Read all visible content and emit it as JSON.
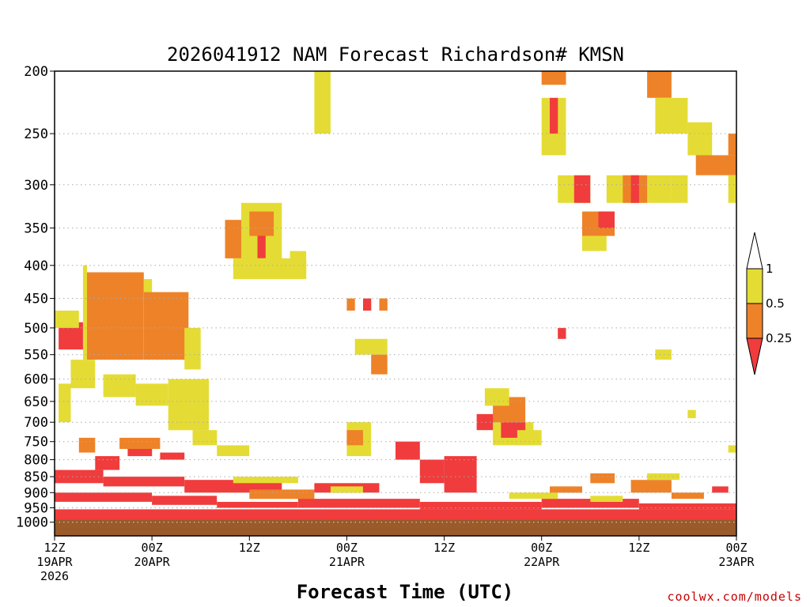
{
  "chart_data": {
    "type": "heatmap",
    "title": "2026041912 NAM Forecast Richardson# KMSN",
    "xlabel": "Forecast Time (UTC)",
    "ylabel": "",
    "credit": "coolwx.com/models",
    "hours_range": [
      0,
      84
    ],
    "pressure_range_hPa": [
      200,
      1050
    ],
    "pressure_ticks": [
      200,
      250,
      300,
      350,
      400,
      450,
      500,
      550,
      600,
      650,
      700,
      750,
      800,
      850,
      900,
      950,
      1000
    ],
    "pressure_tick_labels": [
      "200",
      "250",
      "300",
      "350",
      "400",
      "450",
      "500",
      "550",
      "600",
      "650",
      "700",
      "750",
      "800",
      "850",
      "900",
      "950",
      "1000"
    ],
    "time_ticks": [
      {
        "hour": 0,
        "line1": "12Z",
        "line2": "19APR",
        "line3": "2026"
      },
      {
        "hour": 12,
        "line1": "00Z",
        "line2": "20APR",
        "line3": ""
      },
      {
        "hour": 24,
        "line1": "12Z",
        "line2": "",
        "line3": ""
      },
      {
        "hour": 36,
        "line1": "00Z",
        "line2": "21APR",
        "line3": ""
      },
      {
        "hour": 48,
        "line1": "12Z",
        "line2": "",
        "line3": ""
      },
      {
        "hour": 60,
        "line1": "00Z",
        "line2": "22APR",
        "line3": ""
      },
      {
        "hour": 72,
        "line1": "12Z",
        "line2": "",
        "line3": ""
      },
      {
        "hour": 84,
        "line1": "00Z",
        "line2": "23APR",
        "line3": ""
      }
    ],
    "colors": {
      "low": "#f03c3c",
      "mid": "#ee8228",
      "high": "#e4dc34",
      "ground": "#9a5a2a",
      "grid": "#aaaaaa"
    },
    "legend": {
      "labels": [
        "1",
        "0.5",
        "0.25"
      ]
    },
    "ground_level_hPa": 990,
    "blocks": [
      {
        "h": [
          4,
          11
        ],
        "p": [
          410,
          560
        ],
        "cls": "mid"
      },
      {
        "h": [
          3.5,
          4
        ],
        "p": [
          400,
          560
        ],
        "cls": "high"
      },
      {
        "h": [
          11,
          12
        ],
        "p": [
          420,
          520
        ],
        "cls": "high"
      },
      {
        "h": [
          11,
          16.5
        ],
        "p": [
          440,
          560
        ],
        "cls": "mid"
      },
      {
        "h": [
          16,
          18
        ],
        "p": [
          500,
          580
        ],
        "cls": "high"
      },
      {
        "h": [
          0.5,
          3.5
        ],
        "p": [
          490,
          540
        ],
        "cls": "low"
      },
      {
        "h": [
          0,
          3
        ],
        "p": [
          470,
          500
        ],
        "cls": "high"
      },
      {
        "h": [
          0.5,
          2
        ],
        "p": [
          610,
          700
        ],
        "cls": "high"
      },
      {
        "h": [
          2,
          5
        ],
        "p": [
          560,
          620
        ],
        "cls": "high"
      },
      {
        "h": [
          6,
          10
        ],
        "p": [
          590,
          640
        ],
        "cls": "high"
      },
      {
        "h": [
          10,
          14
        ],
        "p": [
          610,
          660
        ],
        "cls": "high"
      },
      {
        "h": [
          14,
          19
        ],
        "p": [
          600,
          720
        ],
        "cls": "high"
      },
      {
        "h": [
          17,
          20
        ],
        "p": [
          720,
          760
        ],
        "cls": "high"
      },
      {
        "h": [
          3,
          5
        ],
        "p": [
          740,
          780
        ],
        "cls": "mid"
      },
      {
        "h": [
          8,
          13
        ],
        "p": [
          740,
          770
        ],
        "cls": "mid"
      },
      {
        "h": [
          9,
          12
        ],
        "p": [
          770,
          790
        ],
        "cls": "low"
      },
      {
        "h": [
          5,
          8
        ],
        "p": [
          790,
          830
        ],
        "cls": "low"
      },
      {
        "h": [
          13,
          16
        ],
        "p": [
          780,
          800
        ],
        "cls": "low"
      },
      {
        "h": [
          20,
          24
        ],
        "p": [
          760,
          790
        ],
        "cls": "high"
      },
      {
        "h": [
          21,
          23
        ],
        "p": [
          340,
          390
        ],
        "cls": "mid"
      },
      {
        "h": [
          23,
          28
        ],
        "p": [
          320,
          400
        ],
        "cls": "high"
      },
      {
        "h": [
          24,
          27
        ],
        "p": [
          330,
          360
        ],
        "cls": "mid"
      },
      {
        "h": [
          25,
          26
        ],
        "p": [
          360,
          390
        ],
        "cls": "low"
      },
      {
        "h": [
          22,
          31
        ],
        "p": [
          390,
          420
        ],
        "cls": "high"
      },
      {
        "h": [
          29,
          31
        ],
        "p": [
          380,
          410
        ],
        "cls": "high"
      },
      {
        "h": [
          32,
          34
        ],
        "p": [
          200,
          250
        ],
        "cls": "high"
      },
      {
        "h": [
          36,
          37
        ],
        "p": [
          450,
          470
        ],
        "cls": "mid"
      },
      {
        "h": [
          38,
          39
        ],
        "p": [
          450,
          470
        ],
        "cls": "low"
      },
      {
        "h": [
          40,
          41
        ],
        "p": [
          450,
          470
        ],
        "cls": "mid"
      },
      {
        "h": [
          37,
          41
        ],
        "p": [
          520,
          550
        ],
        "cls": "high"
      },
      {
        "h": [
          39,
          41
        ],
        "p": [
          550,
          590
        ],
        "cls": "mid"
      },
      {
        "h": [
          36,
          39
        ],
        "p": [
          700,
          790
        ],
        "cls": "high"
      },
      {
        "h": [
          36,
          38
        ],
        "p": [
          720,
          760
        ],
        "cls": "mid"
      },
      {
        "h": [
          42,
          45
        ],
        "p": [
          750,
          800
        ],
        "cls": "low"
      },
      {
        "h": [
          45,
          48
        ],
        "p": [
          800,
          870
        ],
        "cls": "low"
      },
      {
        "h": [
          48,
          52
        ],
        "p": [
          790,
          900
        ],
        "cls": "low"
      },
      {
        "h": [
          52,
          55
        ],
        "p": [
          680,
          720
        ],
        "cls": "low"
      },
      {
        "h": [
          54,
          58
        ],
        "p": [
          640,
          700
        ],
        "cls": "mid"
      },
      {
        "h": [
          54,
          59
        ],
        "p": [
          700,
          760
        ],
        "cls": "high"
      },
      {
        "h": [
          55,
          58
        ],
        "p": [
          700,
          740
        ],
        "cls": "low"
      },
      {
        "h": [
          57,
          60
        ],
        "p": [
          720,
          760
        ],
        "cls": "high"
      },
      {
        "h": [
          53,
          56
        ],
        "p": [
          620,
          660
        ],
        "cls": "high"
      },
      {
        "h": [
          60,
          63
        ],
        "p": [
          200,
          210
        ],
        "cls": "mid"
      },
      {
        "h": [
          60,
          63
        ],
        "p": [
          220,
          270
        ],
        "cls": "high"
      },
      {
        "h": [
          61,
          62
        ],
        "p": [
          220,
          250
        ],
        "cls": "low"
      },
      {
        "h": [
          62,
          66
        ],
        "p": [
          290,
          320
        ],
        "cls": "high"
      },
      {
        "h": [
          64,
          66
        ],
        "p": [
          290,
          320
        ],
        "cls": "low"
      },
      {
        "h": [
          65,
          69
        ],
        "p": [
          330,
          360
        ],
        "cls": "mid"
      },
      {
        "h": [
          67,
          69
        ],
        "p": [
          330,
          350
        ],
        "cls": "low"
      },
      {
        "h": [
          65,
          68
        ],
        "p": [
          360,
          380
        ],
        "cls": "high"
      },
      {
        "h": [
          68,
          76
        ],
        "p": [
          290,
          320
        ],
        "cls": "high"
      },
      {
        "h": [
          70,
          73
        ],
        "p": [
          290,
          320
        ],
        "cls": "mid"
      },
      {
        "h": [
          71,
          72
        ],
        "p": [
          290,
          320
        ],
        "cls": "low"
      },
      {
        "h": [
          73,
          76
        ],
        "p": [
          200,
          220
        ],
        "cls": "mid"
      },
      {
        "h": [
          74,
          78
        ],
        "p": [
          220,
          250
        ],
        "cls": "high"
      },
      {
        "h": [
          78,
          81
        ],
        "p": [
          240,
          270
        ],
        "cls": "high"
      },
      {
        "h": [
          79,
          84
        ],
        "p": [
          270,
          290
        ],
        "cls": "mid"
      },
      {
        "h": [
          83,
          84
        ],
        "p": [
          290,
          320
        ],
        "cls": "high"
      },
      {
        "h": [
          83,
          84
        ],
        "p": [
          250,
          270
        ],
        "cls": "mid"
      },
      {
        "h": [
          76,
          78
        ],
        "p": [
          290,
          320
        ],
        "cls": "high"
      },
      {
        "h": [
          62,
          63
        ],
        "p": [
          500,
          520
        ],
        "cls": "low"
      },
      {
        "h": [
          66,
          69
        ],
        "p": [
          840,
          870
        ],
        "cls": "mid"
      },
      {
        "h": [
          71,
          76
        ],
        "p": [
          860,
          900
        ],
        "cls": "mid"
      },
      {
        "h": [
          73,
          77
        ],
        "p": [
          840,
          860
        ],
        "cls": "high"
      },
      {
        "h": [
          61,
          65
        ],
        "p": [
          880,
          900
        ],
        "cls": "mid"
      },
      {
        "h": [
          81,
          83
        ],
        "p": [
          880,
          900
        ],
        "cls": "low"
      },
      {
        "h": [
          83,
          84
        ],
        "p": [
          760,
          780
        ],
        "cls": "high"
      },
      {
        "h": [
          74,
          76
        ],
        "p": [
          540,
          560
        ],
        "cls": "high"
      },
      {
        "h": [
          78,
          79
        ],
        "p": [
          670,
          690
        ],
        "cls": "high"
      },
      {
        "h": [
          0,
          6
        ],
        "p": [
          830,
          870
        ],
        "cls": "low"
      },
      {
        "h": [
          6,
          16
        ],
        "p": [
          850,
          880
        ],
        "cls": "low"
      },
      {
        "h": [
          16,
          28
        ],
        "p": [
          860,
          900
        ],
        "cls": "low"
      },
      {
        "h": [
          22,
          30
        ],
        "p": [
          850,
          870
        ],
        "cls": "high"
      },
      {
        "h": [
          24,
          32
        ],
        "p": [
          890,
          920
        ],
        "cls": "mid"
      },
      {
        "h": [
          32,
          40
        ],
        "p": [
          870,
          900
        ],
        "cls": "low"
      },
      {
        "h": [
          0,
          12
        ],
        "p": [
          900,
          930
        ],
        "cls": "low"
      },
      {
        "h": [
          12,
          20
        ],
        "p": [
          910,
          940
        ],
        "cls": "low"
      },
      {
        "h": [
          20,
          30
        ],
        "p": [
          930,
          950
        ],
        "cls": "low"
      },
      {
        "h": [
          30,
          45
        ],
        "p": [
          920,
          950
        ],
        "cls": "low"
      },
      {
        "h": [
          45,
          60
        ],
        "p": [
          930,
          955
        ],
        "cls": "low"
      },
      {
        "h": [
          60,
          72
        ],
        "p": [
          920,
          950
        ],
        "cls": "low"
      },
      {
        "h": [
          72,
          84
        ],
        "p": [
          935,
          955
        ],
        "cls": "low"
      },
      {
        "h": [
          0,
          84
        ],
        "p": [
          955,
          990
        ],
        "cls": "low"
      },
      {
        "h": [
          34,
          38
        ],
        "p": [
          880,
          900
        ],
        "cls": "high"
      },
      {
        "h": [
          56,
          62
        ],
        "p": [
          900,
          920
        ],
        "cls": "high"
      },
      {
        "h": [
          66,
          70
        ],
        "p": [
          910,
          930
        ],
        "cls": "high"
      },
      {
        "h": [
          76,
          80
        ],
        "p": [
          900,
          920
        ],
        "cls": "mid"
      }
    ]
  }
}
